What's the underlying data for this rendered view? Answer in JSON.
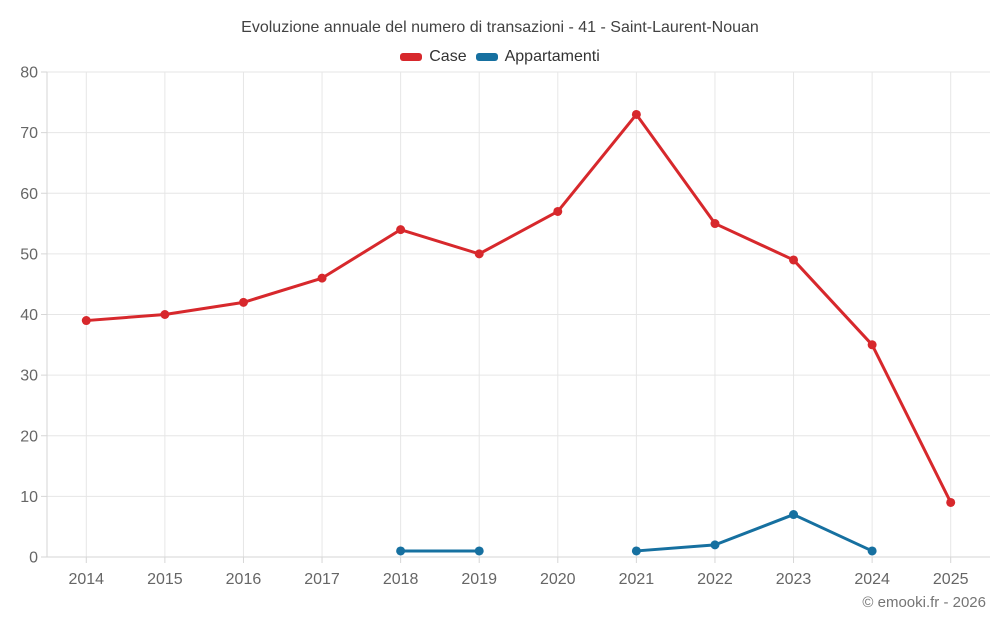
{
  "footer": {
    "copyright": "© emooki.fr - 2026"
  },
  "chart_data": {
    "type": "line",
    "title": "Evoluzione annuale del numero di transazioni - 41 - Saint-Laurent-Nouan",
    "xlabel": "",
    "ylabel": "",
    "categories": [
      "2014",
      "2015",
      "2016",
      "2017",
      "2018",
      "2019",
      "2020",
      "2021",
      "2022",
      "2023",
      "2024",
      "2025"
    ],
    "series": [
      {
        "name": "Case",
        "color": "#d7282c",
        "values": [
          39,
          40,
          42,
          46,
          54,
          50,
          57,
          73,
          55,
          49,
          35,
          9
        ]
      },
      {
        "name": "Appartamenti",
        "color": "#1670a0",
        "values": [
          null,
          null,
          null,
          null,
          1,
          1,
          null,
          1,
          2,
          7,
          1,
          null
        ]
      }
    ],
    "ylim": [
      0,
      80
    ],
    "ytick_interval": 10,
    "yticks": [
      0,
      10,
      20,
      30,
      40,
      50,
      60,
      70,
      80
    ],
    "grid": true,
    "legend_position": "top"
  },
  "colors": {
    "background": "#ffffff",
    "grid": "#e6e6e6",
    "axis": "#d6d6d6",
    "tick_label": "#666666",
    "title_text": "#424242",
    "legend_text": "#333333",
    "copyright_text": "#757575"
  }
}
